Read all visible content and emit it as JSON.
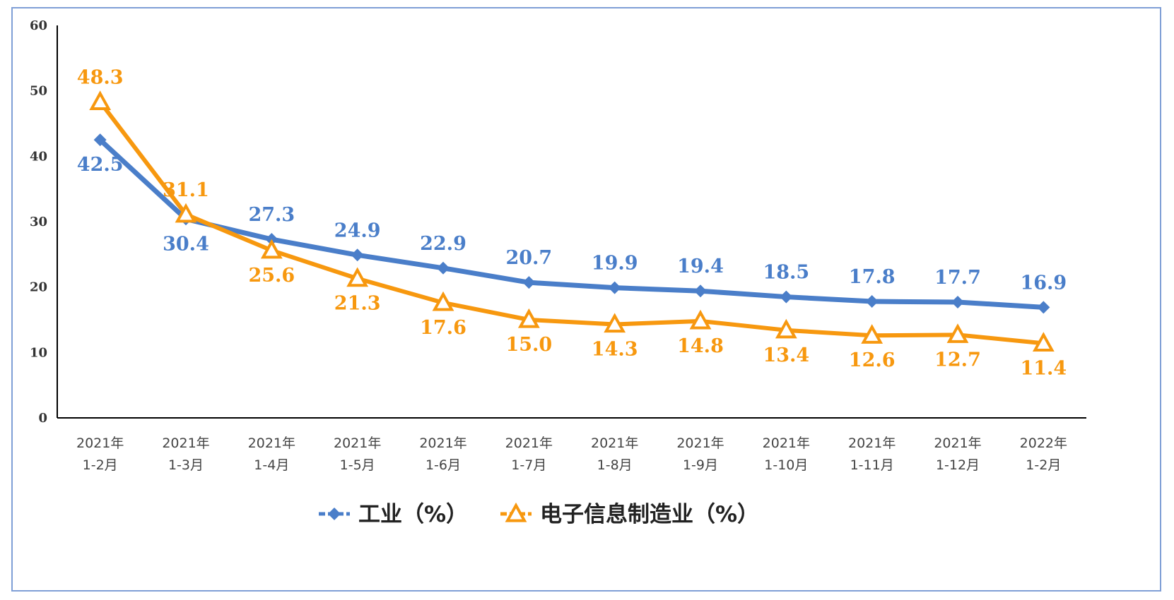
{
  "chart_data": {
    "type": "line",
    "categories": [
      [
        "2021年",
        "1-2月"
      ],
      [
        "2021年",
        "1-3月"
      ],
      [
        "2021年",
        "1-4月"
      ],
      [
        "2021年",
        "1-5月"
      ],
      [
        "2021年",
        "1-6月"
      ],
      [
        "2021年",
        "1-7月"
      ],
      [
        "2021年",
        "1-8月"
      ],
      [
        "2021年",
        "1-9月"
      ],
      [
        "2021年",
        "1-10月"
      ],
      [
        "2021年",
        "1-11月"
      ],
      [
        "2021年",
        "1-12月"
      ],
      [
        "2022年",
        "1-2月"
      ]
    ],
    "series": [
      {
        "name": "工业（%）",
        "color": "#4a7ec9",
        "marker": "diamond",
        "values": [
          42.5,
          30.4,
          27.3,
          24.9,
          22.9,
          20.7,
          19.9,
          19.4,
          18.5,
          17.8,
          17.7,
          16.9
        ],
        "labels": [
          "42.5",
          "30.4",
          "27.3",
          "24.9",
          "22.9",
          "20.7",
          "19.9",
          "19.4",
          "18.5",
          "17.8",
          "17.7",
          "16.9"
        ]
      },
      {
        "name": "电子信息制造业（%）",
        "color": "#f7980f",
        "marker": "triangle",
        "values": [
          48.3,
          31.1,
          25.6,
          21.3,
          17.6,
          15.0,
          14.3,
          14.8,
          13.4,
          12.6,
          12.7,
          11.4
        ],
        "labels": [
          "48.3",
          "31.1",
          "25.6",
          "21.3",
          "17.6",
          "15.0",
          "14.3",
          "14.8",
          "13.4",
          "12.6",
          "12.7",
          "11.4"
        ]
      }
    ],
    "yticks": [
      "0",
      "10",
      "20",
      "30",
      "40",
      "50",
      "60"
    ],
    "ylim": [
      0,
      60
    ],
    "grid": false,
    "legend": "bottom-center"
  }
}
